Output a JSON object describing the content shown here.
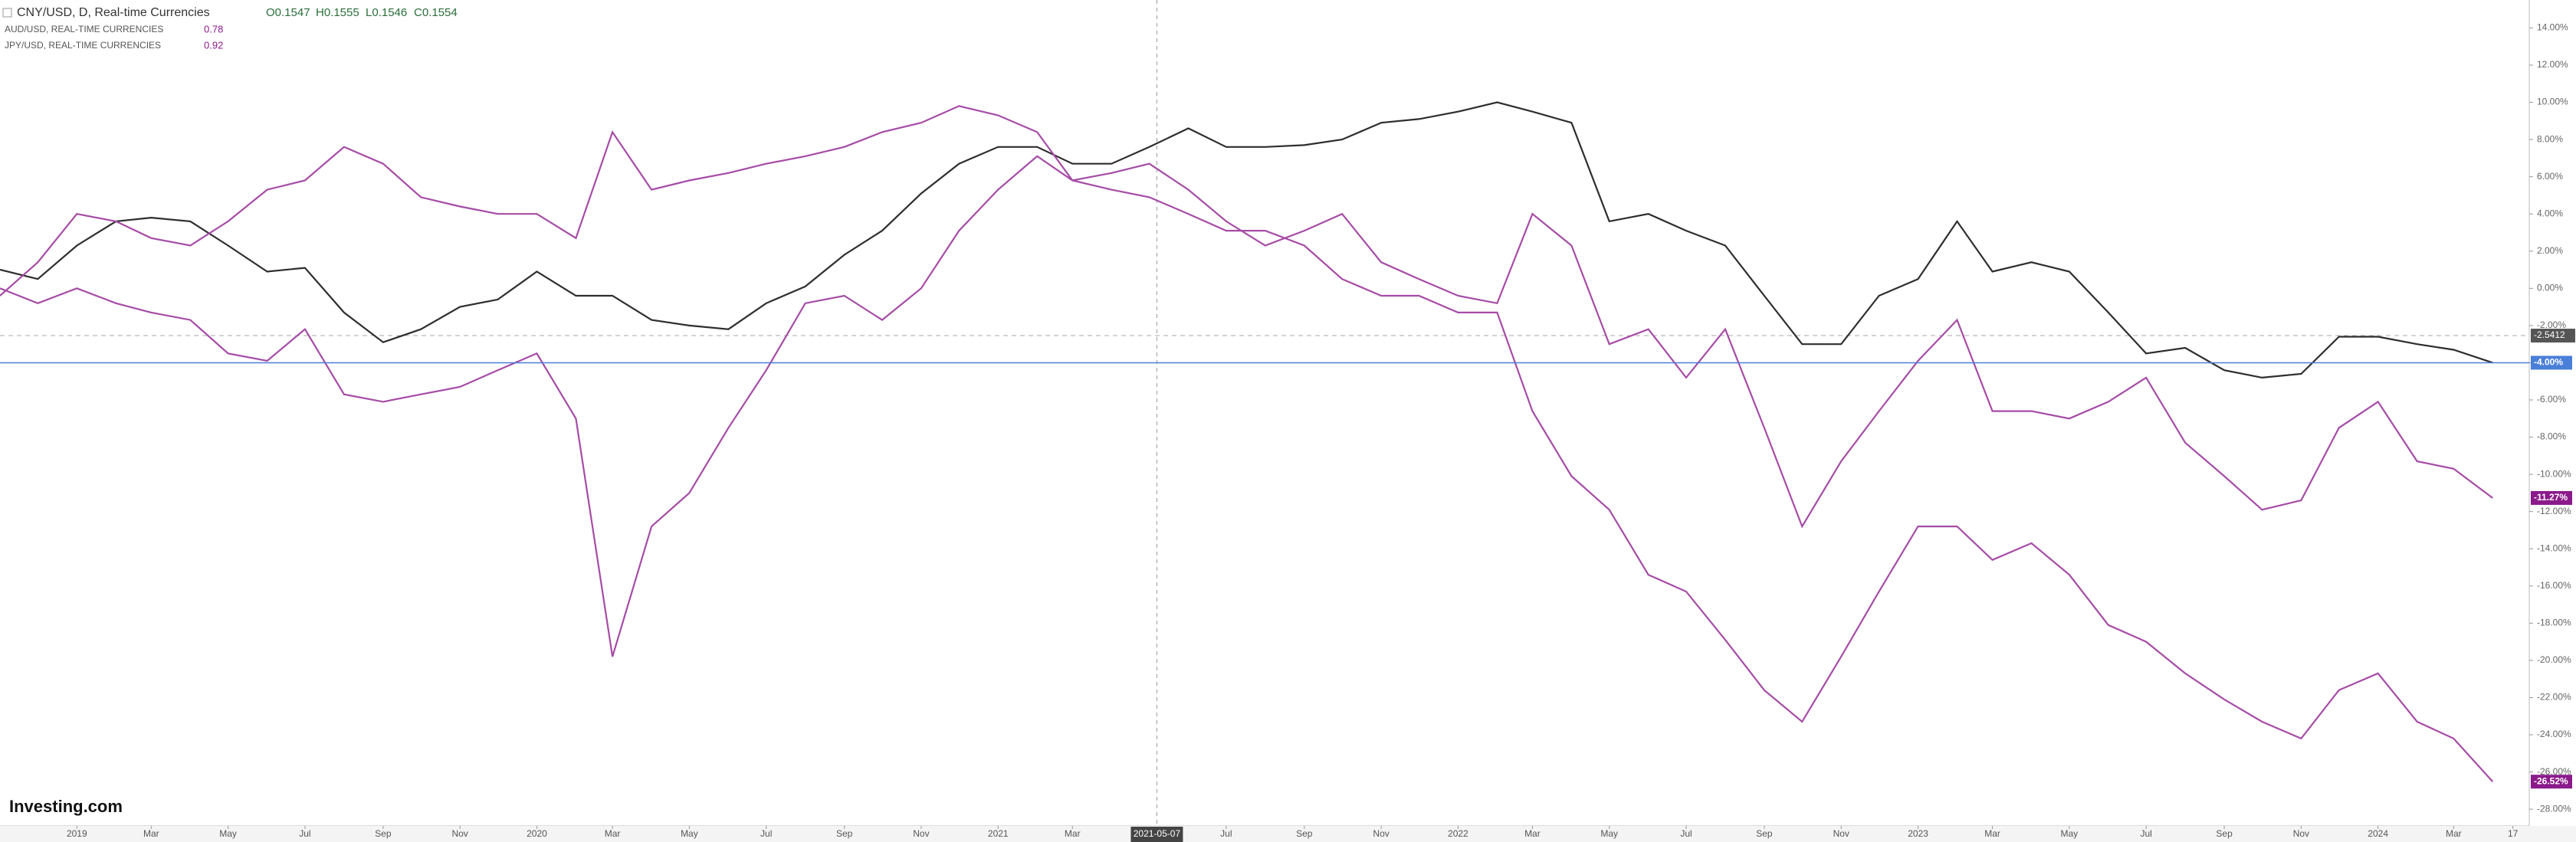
{
  "header": {
    "symbol": "CNY/USD, D, Real-time Currencies",
    "open": "O0.1547",
    "high": "H0.1555",
    "low": "L0.1546",
    "close": "C0.1554",
    "compare": [
      {
        "name": "AUD/USD, REAL-TIME CURRENCIES",
        "value": "0.78"
      },
      {
        "name": "JPY/USD, REAL-TIME CURRENCIES",
        "value": "0.92"
      }
    ]
  },
  "logo": "Investing.com",
  "chart_data": {
    "type": "line",
    "x": [
      "2018-11",
      "2018-12",
      "2019-01",
      "2019-02",
      "2019-03",
      "2019-04",
      "2019-05",
      "2019-06",
      "2019-07",
      "2019-08",
      "2019-09",
      "2019-10",
      "2019-11",
      "2019-12",
      "2020-01",
      "2020-02",
      "2020-03",
      "2020-04",
      "2020-05",
      "2020-06",
      "2020-07",
      "2020-08",
      "2020-09",
      "2020-10",
      "2020-11",
      "2020-12",
      "2021-01",
      "2021-02",
      "2021-03",
      "2021-04",
      "2021-05",
      "2021-06",
      "2021-07",
      "2021-08",
      "2021-09",
      "2021-10",
      "2021-11",
      "2021-12",
      "2022-01",
      "2022-02",
      "2022-03",
      "2022-04",
      "2022-05",
      "2022-06",
      "2022-07",
      "2022-08",
      "2022-09",
      "2022-10",
      "2022-11",
      "2022-12",
      "2023-01",
      "2023-02",
      "2023-03",
      "2023-04",
      "2023-05",
      "2023-06",
      "2023-07",
      "2023-08",
      "2023-09",
      "2023-10",
      "2023-11",
      "2023-12",
      "2024-01",
      "2024-02",
      "2024-03",
      "2024-04"
    ],
    "series": [
      {
        "name": "CNY/USD",
        "color": "#2e2e2e",
        "last_label": "-4.00%",
        "label_color": "#4a7fd9",
        "values": [
          1.0,
          0.5,
          2.3,
          3.6,
          3.8,
          3.6,
          2.3,
          0.9,
          1.1,
          -1.3,
          -2.9,
          -2.2,
          -1.0,
          -0.6,
          0.9,
          -0.4,
          -0.4,
          -1.7,
          -2.0,
          -2.2,
          -0.8,
          0.1,
          1.8,
          3.1,
          5.1,
          6.7,
          7.6,
          7.6,
          6.7,
          6.7,
          7.6,
          8.6,
          7.6,
          7.6,
          7.7,
          8.0,
          8.9,
          9.1,
          9.5,
          10.0,
          9.5,
          8.9,
          3.6,
          4.0,
          3.1,
          2.3,
          -0.4,
          -3.0,
          -3.0,
          -0.4,
          0.5,
          3.6,
          0.9,
          1.4,
          0.9,
          -1.3,
          -3.5,
          -3.2,
          -4.4,
          -4.8,
          -4.6,
          -2.6,
          -2.6,
          -3.0,
          -3.3,
          -4.0
        ]
      },
      {
        "name": "AUD/USD",
        "color": "#a64ca6",
        "last_label": "-11.27%",
        "label_color": "#8b1a8b",
        "values": [
          0,
          -0.8,
          0,
          -0.8,
          -1.3,
          -1.7,
          -3.5,
          -3.9,
          -2.2,
          -5.7,
          -6.1,
          -5.7,
          -5.3,
          -4.4,
          -3.5,
          -7.0,
          -19.8,
          -12.8,
          -11.0,
          -7.5,
          -4.4,
          -0.8,
          -0.4,
          -1.7,
          0,
          3.1,
          5.3,
          7.1,
          5.8,
          6.2,
          6.7,
          5.3,
          3.6,
          2.3,
          3.1,
          4.0,
          1.4,
          0.5,
          -0.4,
          -0.8,
          4.0,
          2.3,
          -3.0,
          -2.2,
          -4.8,
          -2.2,
          -7.5,
          -12.8,
          -9.3,
          -6.6,
          -3.9,
          -1.7,
          -6.6,
          -6.6,
          -7.0,
          -6.1,
          -4.8,
          -8.3,
          -10.1,
          -11.9,
          -11.4,
          -7.5,
          -6.1,
          -9.3,
          -9.7,
          -11.27
        ]
      },
      {
        "name": "JPY/USD",
        "color": "#a64ca6",
        "last_label": "-26.52%",
        "label_color": "#8b1a8b",
        "values": [
          -0.4,
          1.4,
          4.0,
          3.6,
          2.7,
          2.3,
          3.6,
          5.3,
          5.8,
          7.6,
          6.7,
          4.9,
          4.4,
          4.0,
          4.0,
          2.7,
          8.4,
          5.3,
          5.8,
          6.2,
          6.7,
          7.1,
          7.6,
          8.4,
          8.9,
          9.8,
          9.3,
          8.4,
          5.8,
          5.3,
          4.9,
          4.0,
          3.1,
          3.1,
          2.3,
          0.5,
          -0.4,
          -0.4,
          -1.3,
          -1.3,
          -6.6,
          -10.1,
          -11.9,
          -15.4,
          -16.3,
          -18.9,
          -21.6,
          -23.3,
          -19.8,
          -16.3,
          -12.8,
          -12.8,
          -14.6,
          -13.7,
          -15.4,
          -18.1,
          -19.0,
          -20.7,
          -22.1,
          -23.3,
          -24.2,
          -21.6,
          -20.7,
          -23.3,
          -24.2,
          -26.52
        ]
      }
    ],
    "xlim": [
      "2018-11-01",
      "2024-04-30"
    ],
    "xticks": [
      {
        "value": "2019-01",
        "label": "2019"
      },
      {
        "value": "2019-03",
        "label": "Mar"
      },
      {
        "value": "2019-05",
        "label": "May"
      },
      {
        "value": "2019-07",
        "label": "Jul"
      },
      {
        "value": "2019-09",
        "label": "Sep"
      },
      {
        "value": "2019-11",
        "label": "Nov"
      },
      {
        "value": "2020-01",
        "label": "2020"
      },
      {
        "value": "2020-03",
        "label": "Mar"
      },
      {
        "value": "2020-05",
        "label": "May"
      },
      {
        "value": "2020-07",
        "label": "Jul"
      },
      {
        "value": "2020-09",
        "label": "Sep"
      },
      {
        "value": "2020-11",
        "label": "Nov"
      },
      {
        "value": "2021-01",
        "label": "2021"
      },
      {
        "value": "2021-03",
        "label": "Mar"
      },
      {
        "value": "2021-07",
        "label": "Jul"
      },
      {
        "value": "2021-09",
        "label": "Sep"
      },
      {
        "value": "2021-11",
        "label": "Nov"
      },
      {
        "value": "2022-01",
        "label": "2022"
      },
      {
        "value": "2022-03",
        "label": "Mar"
      },
      {
        "value": "2022-05",
        "label": "May"
      },
      {
        "value": "2022-07",
        "label": "Jul"
      },
      {
        "value": "2022-09",
        "label": "Sep"
      },
      {
        "value": "2022-11",
        "label": "Nov"
      },
      {
        "value": "2023-01",
        "label": "2023"
      },
      {
        "value": "2023-03",
        "label": "Mar"
      },
      {
        "value": "2023-05",
        "label": "May"
      },
      {
        "value": "2023-07",
        "label": "Jul"
      },
      {
        "value": "2023-09",
        "label": "Sep"
      },
      {
        "value": "2023-11",
        "label": "Nov"
      },
      {
        "value": "2024-01",
        "label": "2024"
      },
      {
        "value": "2024-03",
        "label": "Mar"
      },
      {
        "value": "2024-04-17",
        "label": "17"
      }
    ],
    "crosshair_x": "2021-05-07",
    "price_line": -2.5412,
    "ylim": [
      -28.9,
      15.5
    ],
    "yticks": [
      {
        "value": 14,
        "label": "14.00%"
      },
      {
        "value": 12,
        "label": "12.00%"
      },
      {
        "value": 10,
        "label": "10.00%"
      },
      {
        "value": 8,
        "label": "8.00%"
      },
      {
        "value": 6,
        "label": "6.00%"
      },
      {
        "value": 4,
        "label": "4.00%"
      },
      {
        "value": 2,
        "label": "2.00%"
      },
      {
        "value": 0,
        "label": "0.00%"
      },
      {
        "value": -2,
        "label": "-2.00%"
      },
      {
        "value": -4,
        "label": "-4.00%"
      },
      {
        "value": -6,
        "label": "-6.00%"
      },
      {
        "value": -8,
        "label": "-8.00%"
      },
      {
        "value": -10,
        "label": "-10.00%"
      },
      {
        "value": -12,
        "label": "-12.00%"
      },
      {
        "value": -14,
        "label": "-14.00%"
      },
      {
        "value": -16,
        "label": "-16.00%"
      },
      {
        "value": -18,
        "label": "-18.00%"
      },
      {
        "value": -20,
        "label": "-20.00%"
      },
      {
        "value": -22,
        "label": "-22.00%"
      },
      {
        "value": -24,
        "label": "-24.00%"
      },
      {
        "value": -26,
        "label": "-26.00%"
      },
      {
        "value": -28,
        "label": "-28.00%"
      }
    ]
  }
}
